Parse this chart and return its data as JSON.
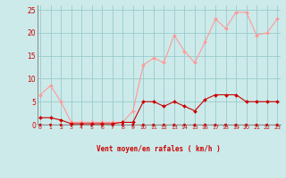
{
  "x": [
    0,
    1,
    2,
    3,
    4,
    5,
    6,
    7,
    8,
    9,
    10,
    11,
    12,
    13,
    14,
    15,
    16,
    17,
    18,
    19,
    20,
    21,
    22,
    23
  ],
  "y_avg": [
    1.5,
    1.5,
    1.0,
    0.2,
    0.2,
    0.2,
    0.2,
    0.2,
    0.5,
    0.5,
    5.0,
    5.0,
    4.0,
    5.0,
    4.0,
    3.0,
    5.5,
    6.5,
    6.5,
    6.5,
    5.0,
    5.0,
    5.0,
    5.0
  ],
  "y_gust": [
    6.5,
    8.5,
    5.0,
    0.5,
    0.5,
    0.5,
    0.5,
    0.5,
    0.5,
    3.0,
    13.0,
    14.5,
    13.5,
    19.5,
    16.0,
    13.5,
    18.0,
    23.0,
    21.0,
    24.5,
    24.5,
    19.5,
    20.0,
    23.0
  ],
  "avg_color": "#cc0000",
  "gust_color": "#ff9999",
  "bg_color": "#cceaea",
  "grid_color": "#99cccc",
  "axis_label": "Vent moyen/en rafales ( km/h )",
  "yticks": [
    0,
    5,
    10,
    15,
    20,
    25
  ],
  "xticks": [
    0,
    1,
    2,
    3,
    4,
    5,
    6,
    7,
    8,
    9,
    10,
    11,
    12,
    13,
    14,
    15,
    16,
    17,
    18,
    19,
    20,
    21,
    22,
    23
  ],
  "ylim": [
    0,
    26
  ],
  "xlim": [
    -0.3,
    23.3
  ],
  "arrow_color": "#cc0000",
  "hline_color": "#cc0000",
  "tick_label_color": "#cc0000",
  "axis_label_color": "#cc0000",
  "spine_color": "#888888"
}
